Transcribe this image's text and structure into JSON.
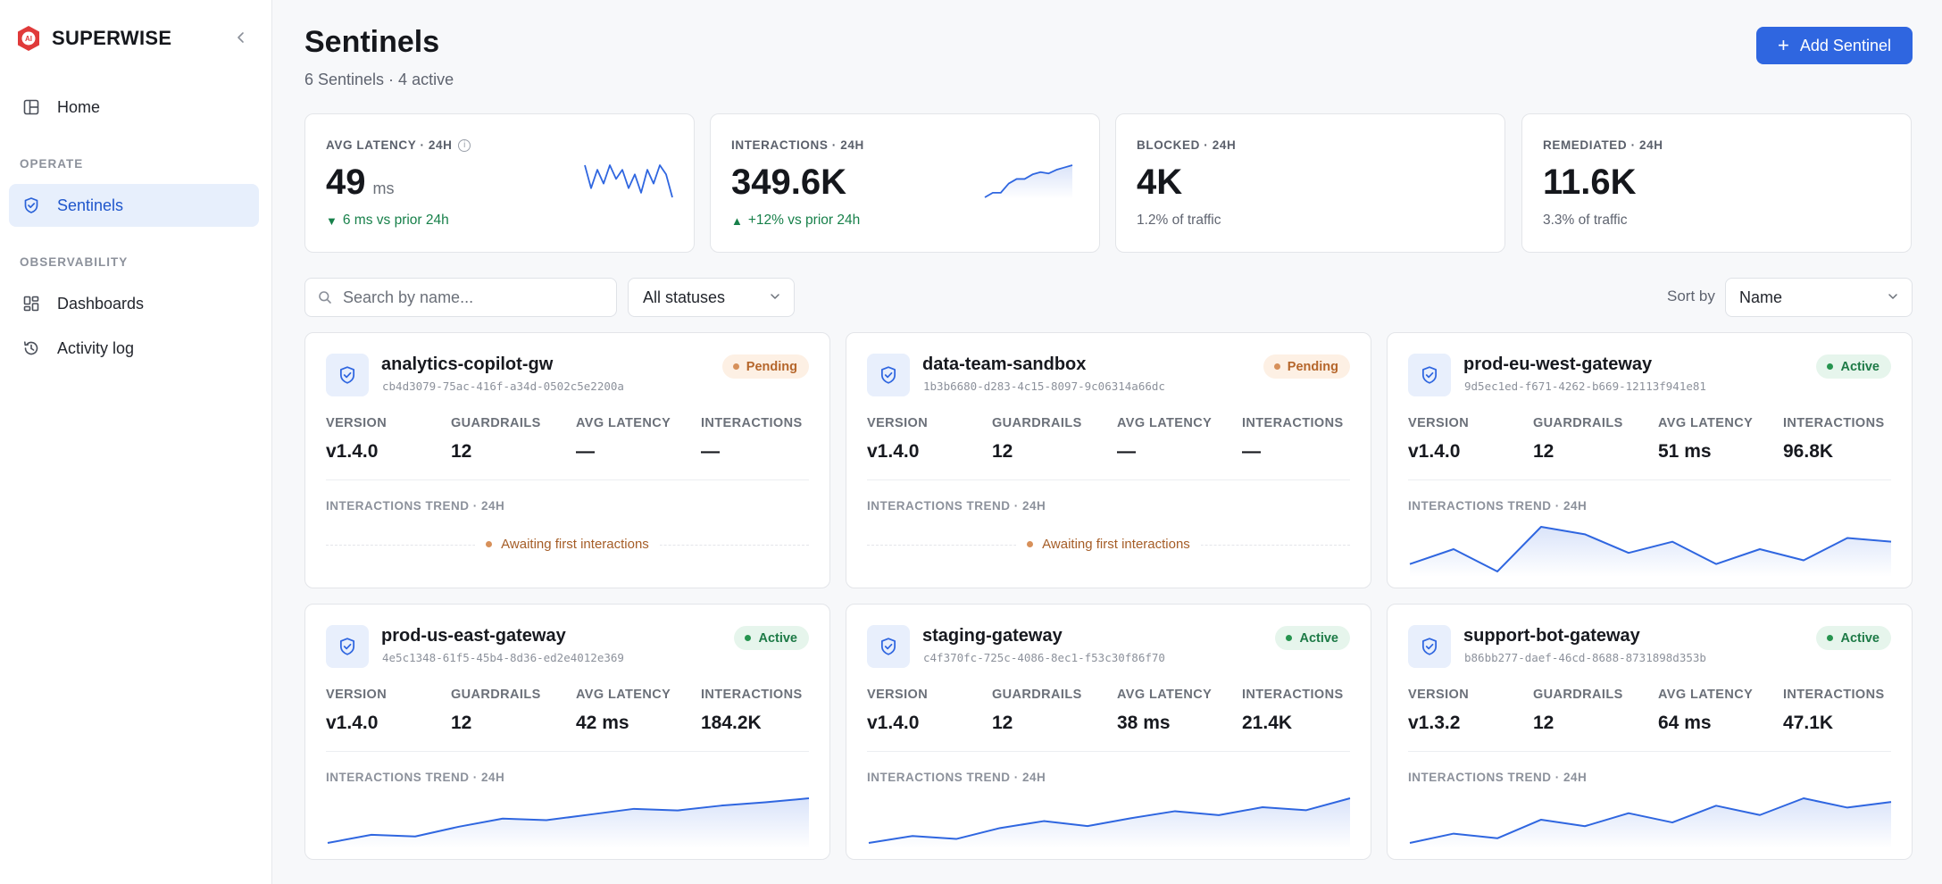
{
  "brand": {
    "name": "SUPERWISE",
    "logo_text": "AI"
  },
  "sidebar": {
    "home": "Home",
    "sections": [
      "OPERATE",
      "OBSERVABILITY"
    ],
    "sentinels": "Sentinels",
    "dashboards": "Dashboards",
    "activity_log": "Activity log"
  },
  "header": {
    "title": "Sentinels",
    "subtitle": "6 Sentinels · 4 active",
    "add_label": "Add Sentinel"
  },
  "kpis": [
    {
      "label": "AVG LATENCY · 24H",
      "value": "49",
      "unit": "ms",
      "delta": "6 ms vs prior 24h",
      "trend": [
        8,
        3,
        7,
        4,
        8,
        5,
        7,
        3,
        6,
        2,
        7,
        4,
        8,
        6,
        1
      ]
    },
    {
      "label": "INTERACTIONS · 24H",
      "value": "349.6K",
      "delta": "+12% vs prior 24h",
      "trend": [
        2,
        3,
        3,
        5,
        6,
        6,
        7,
        7.5,
        7.2,
        8,
        8.5,
        9
      ]
    },
    {
      "label": "BLOCKED · 24H",
      "value": "4K",
      "sub": "1.2% of traffic"
    },
    {
      "label": "REMEDIATED · 24H",
      "value": "11.6K",
      "sub": "3.3% of traffic"
    }
  ],
  "toolbar": {
    "search_placeholder": "Search by name...",
    "status_filter": "All statuses",
    "sort_label": "Sort by",
    "sort_value": "Name"
  },
  "stat_labels": {
    "version": "VERSION",
    "guardrails": "GUARDRAILS",
    "avg_latency": "AVG LATENCY",
    "interactions": "INTERACTIONS"
  },
  "trend_label": "INTERACTIONS TREND · 24H",
  "awaiting_text": "Awaiting first interactions",
  "colors": {
    "accent": "#2f66e0",
    "pending": "#b5662b",
    "active": "#1d7a46"
  },
  "sentinels": [
    {
      "name": "analytics-copilot-gw",
      "id": "cb4d3079-75ac-416f-a34d-0502c5e2200a",
      "status": "Pending",
      "version": "v1.4.0",
      "guardrails": "12",
      "avg_latency": "—",
      "interactions": "—",
      "trend": []
    },
    {
      "name": "data-team-sandbox",
      "id": "1b3b6680-d283-4c15-8097-9c06314a66dc",
      "status": "Pending",
      "version": "v1.4.0",
      "guardrails": "12",
      "avg_latency": "—",
      "interactions": "—",
      "trend": []
    },
    {
      "name": "prod-eu-west-gateway",
      "id": "9d5ec1ed-f671-4262-b669-12113f941e81",
      "status": "Active",
      "version": "v1.4.0",
      "guardrails": "12",
      "avg_latency": "51 ms",
      "interactions": "96.8K",
      "trend": [
        3,
        5,
        2,
        8,
        7,
        4.5,
        6,
        3,
        5,
        3.5,
        6.5,
        6
      ]
    },
    {
      "name": "prod-us-east-gateway",
      "id": "4e5c1348-61f5-45b4-8d36-ed2e4012e369",
      "status": "Active",
      "version": "v1.4.0",
      "guardrails": "12",
      "avg_latency": "42 ms",
      "interactions": "184.2K",
      "trend": [
        1,
        2,
        1.8,
        3,
        4,
        3.8,
        4.5,
        5.2,
        5,
        5.6,
        6,
        6.5
      ]
    },
    {
      "name": "staging-gateway",
      "id": "c4f370fc-725c-4086-8ec1-f53c30f86f70",
      "status": "Active",
      "version": "v1.4.0",
      "guardrails": "12",
      "avg_latency": "38 ms",
      "interactions": "21.4K",
      "trend": [
        1,
        1.7,
        1.4,
        2.5,
        3.2,
        2.7,
        3.5,
        4.2,
        3.8,
        4.6,
        4.3,
        5.5
      ]
    },
    {
      "name": "support-bot-gateway",
      "id": "b86bb277-daef-46cd-8688-8731898d353b",
      "status": "Active",
      "version": "v1.3.2",
      "guardrails": "12",
      "avg_latency": "64 ms",
      "interactions": "47.1K",
      "trend": [
        1,
        2,
        1.5,
        3.5,
        2.8,
        4.2,
        3.2,
        5,
        4,
        5.8,
        4.8,
        5.4
      ]
    }
  ]
}
